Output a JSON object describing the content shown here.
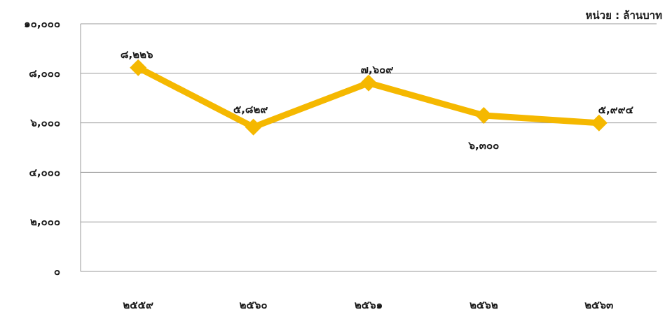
{
  "unit_label": "หน่วย : ล้านบาท",
  "chart_data": {
    "type": "line",
    "categories": [
      "๒๕๕๙",
      "๒๕๖๐",
      "๒๕๖๑",
      "๒๕๖๒",
      "๒๕๖๓"
    ],
    "values": [
      8226,
      5829,
      7609,
      6300,
      5994
    ],
    "value_labels": [
      "๘,๒๒๖",
      "๕,๘๒๙",
      "๗,๖๐๙",
      "๖,๓๐๐",
      "๕,๙๙๔"
    ],
    "y_ticks": [
      0,
      2000,
      4000,
      6000,
      8000,
      10000
    ],
    "y_tick_labels": [
      "๐",
      "๒,๐๐๐",
      "๔,๐๐๐",
      "๖,๐๐๐",
      "๘,๐๐๐",
      "๑๐,๐๐๐"
    ],
    "ylim": [
      0,
      10000
    ],
    "grid": true,
    "legend": "none",
    "title": "",
    "xlabel": "",
    "ylabel": "",
    "line_color": "#F5B800",
    "grid_color": "#9a9a9a"
  }
}
